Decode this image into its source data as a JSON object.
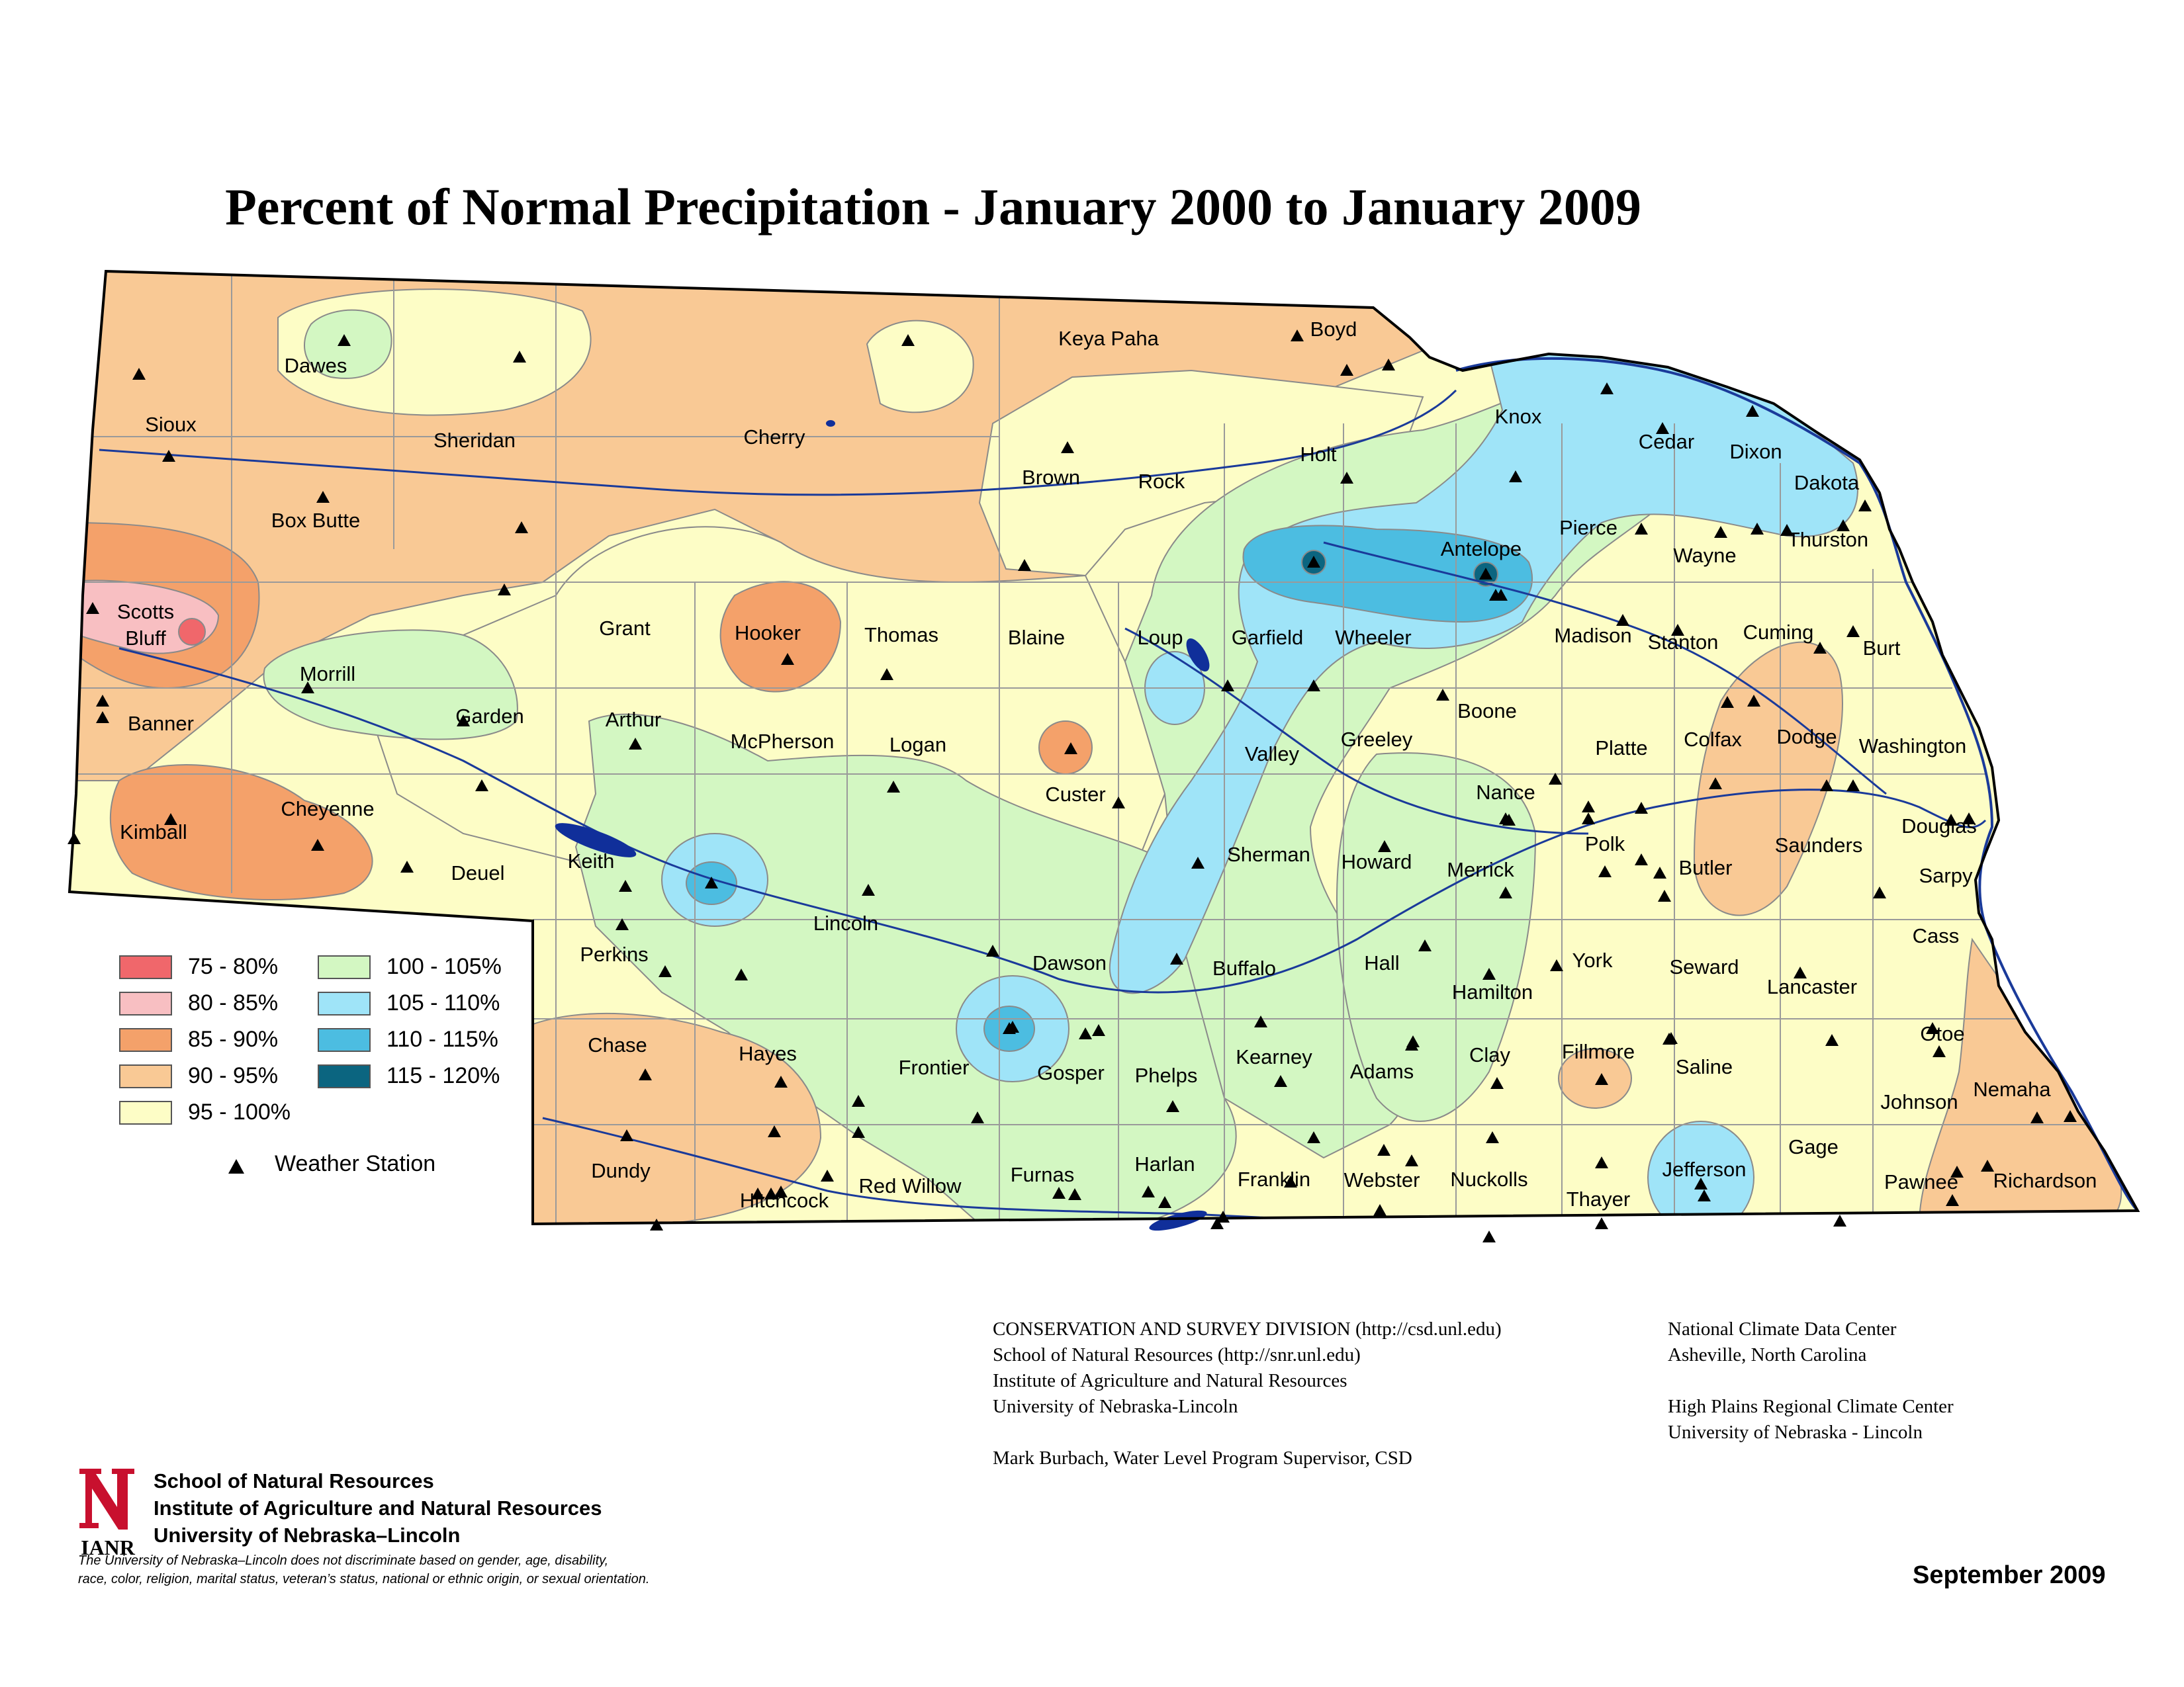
{
  "map": {
    "title": "Percent of Normal Precipitation - January 2000 to January 2009",
    "date": "September 2009",
    "colors": {
      "c75_80": "#f0676b",
      "c80_85": "#f8bfc2",
      "c85_90": "#f4a16a",
      "c90_95": "#f9c995",
      "c95_100": "#fdfdc6",
      "c100_105": "#d3f7c2",
      "c105_110": "#9fe4f8",
      "c110_115": "#4cbde1",
      "c115_120": "#0b6580",
      "water": "#102f9a"
    },
    "legend": [
      {
        "label": "75 - 80%",
        "color": "#f0676b"
      },
      {
        "label": "80 - 85%",
        "color": "#f8bfc2"
      },
      {
        "label": "85 - 90%",
        "color": "#f4a16a"
      },
      {
        "label": "90 - 95%",
        "color": "#f9c995"
      },
      {
        "label": "95 - 100%",
        "color": "#fdfdc6"
      },
      {
        "label": "100 - 105%",
        "color": "#d3f7c2"
      },
      {
        "label": "105 - 110%",
        "color": "#9fe4f8"
      },
      {
        "label": "110 - 115%",
        "color": "#4cbde1"
      },
      {
        "label": "115 - 120%",
        "color": "#0b6580"
      }
    ],
    "station_legend": "Weather Station",
    "counties": [
      "Dawes",
      "Sioux",
      "Sheridan",
      "Cherry",
      "Keya Paha",
      "Boyd",
      "Knox",
      "Cedar",
      "Dixon",
      "Dakota",
      "Box Butte",
      "Brown",
      "Rock",
      "Holt",
      "Antelope",
      "Pierce",
      "Wayne",
      "Thurston",
      "Scotts",
      "Bluff",
      "Grant",
      "Hooker",
      "Thomas",
      "Blaine",
      "Loup",
      "Garfield",
      "Wheeler",
      "Madison",
      "Stanton",
      "Cuming",
      "Burt",
      "Morrill",
      "Garden",
      "Banner",
      "Arthur",
      "McPherson",
      "Logan",
      "Custer",
      "Valley",
      "Greeley",
      "Boone",
      "Platte",
      "Colfax",
      "Dodge",
      "Washington",
      "Kimball",
      "Cheyenne",
      "Deuel",
      "Keith",
      "Lincoln",
      "Nance",
      "Douglas",
      "Sherman",
      "Howard",
      "Merrick",
      "Polk",
      "Butler",
      "Saunders",
      "Sarpy",
      "Perkins",
      "Dawson",
      "Buffalo",
      "Hall",
      "Hamilton",
      "York",
      "Seward",
      "Lancaster",
      "Cass",
      "Chase",
      "Hayes",
      "Frontier",
      "Gosper",
      "Phelps",
      "Kearney",
      "Adams",
      "Clay",
      "Fillmore",
      "Saline",
      "Otoe",
      "Nemaha",
      "Johnson",
      "Dundy",
      "Hitchcock",
      "Red Willow",
      "Furnas",
      "Harlan",
      "Franklin",
      "Webster",
      "Nuckolls",
      "Thayer",
      "Jefferson",
      "Gage",
      "Pawnee",
      "Richardson"
    ]
  },
  "credits": {
    "left": [
      "CONSERVATION AND SURVEY DIVISION (http://csd.unl.edu)",
      "School of Natural Resources (http://snr.unl.edu)",
      "Institute of Agriculture and Natural Resources",
      "University of Nebraska-Lincoln",
      "",
      "Mark Burbach, Water Level Program Supervisor, CSD"
    ],
    "right": [
      "National Climate Data Center",
      "Asheville, North Carolina",
      "",
      "High Plains Regional Climate Center",
      "University of Nebraska - Lincoln"
    ]
  },
  "institution": {
    "logo_text": "IANR",
    "lines": [
      "School of Natural Resources",
      "Institute of Agriculture and Natural Resources",
      "University of Nebraska–Lincoln"
    ],
    "disclaimer": [
      "The University of Nebraska–Lincoln does not discriminate based on gender, age, disability,",
      "race, color, religion, marital status, veteran’s status, national or ethnic origin, or sexual orientation."
    ]
  }
}
